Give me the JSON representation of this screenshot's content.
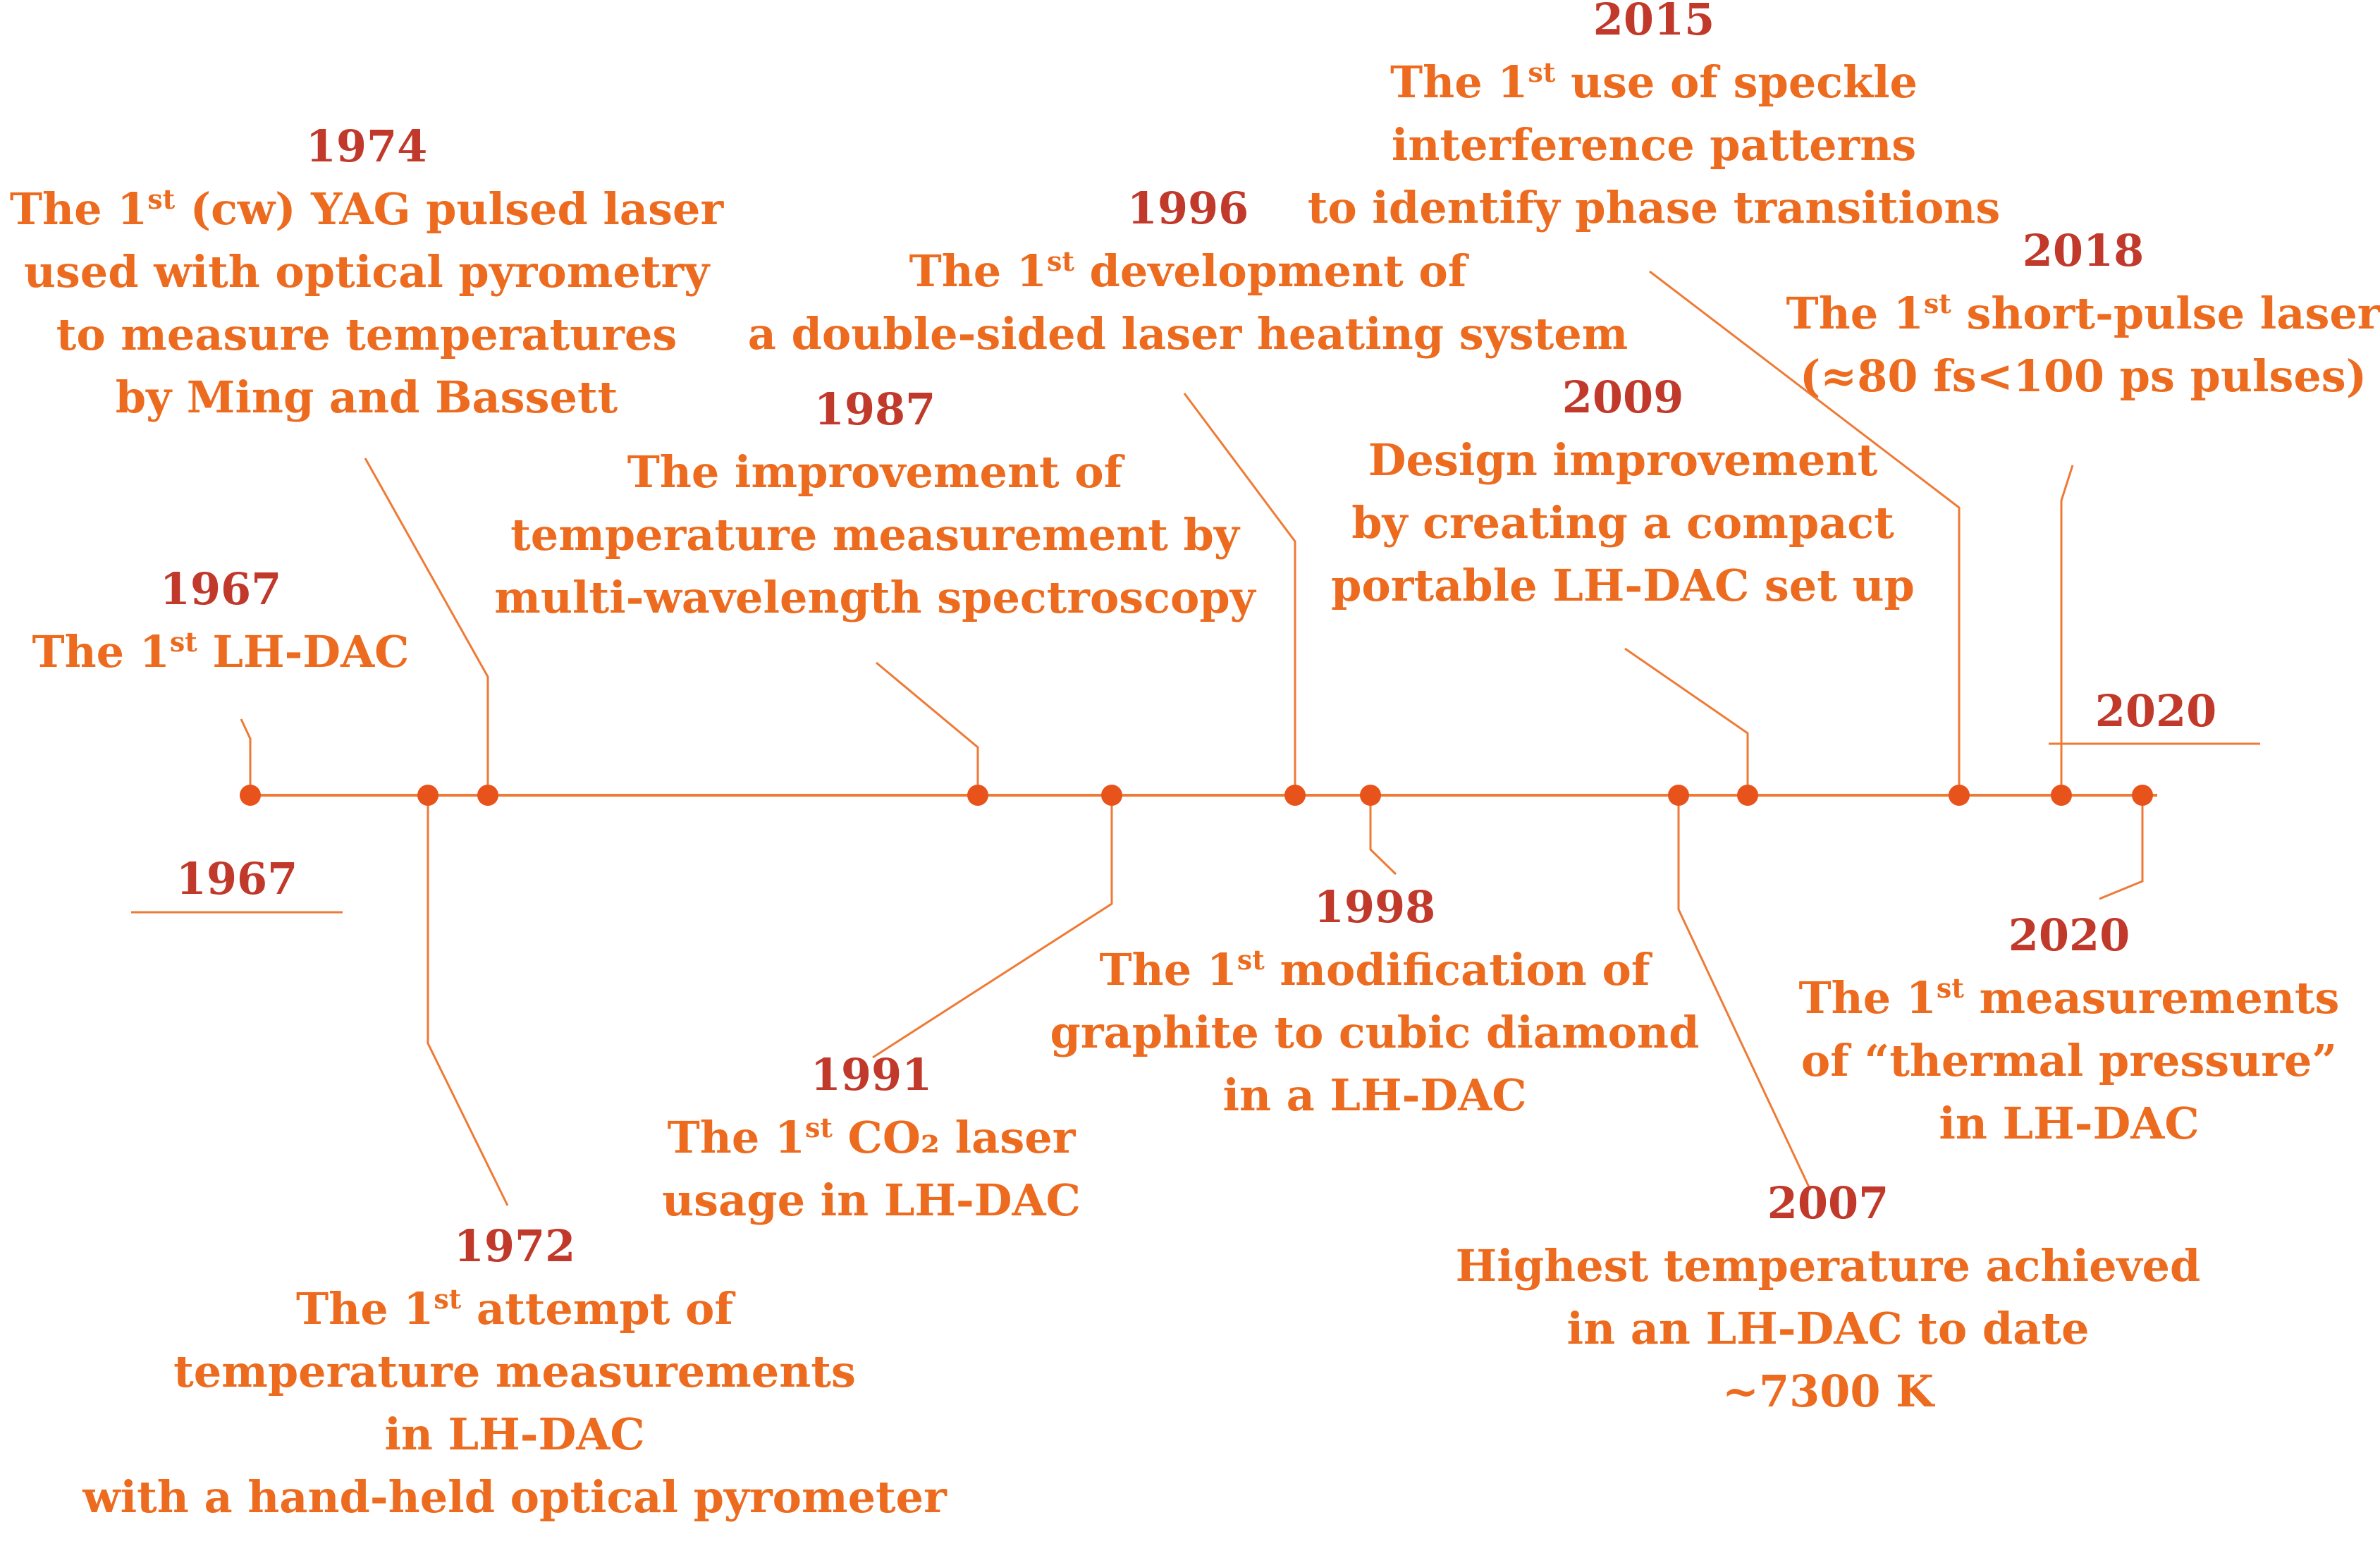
{
  "colors": {
    "year": "#c0392b",
    "text": "#ec6b1f",
    "line": "#ef7a35",
    "marker": "#e8531b"
  },
  "start_label": "1967",
  "end_label": "2020",
  "events": [
    {
      "id": "1967",
      "year": "1967",
      "lines": [
        [
          "The 1",
          "st",
          " LH-DAC"
        ]
      ]
    },
    {
      "id": "1972",
      "year": "1972",
      "lines": [
        [
          "The 1",
          "st",
          " attempt of"
        ],
        [
          "temperature measurements"
        ],
        [
          "in LH-DAC"
        ],
        [
          "with a hand-held optical pyrometer"
        ]
      ]
    },
    {
      "id": "1974",
      "year": "1974",
      "lines": [
        [
          "The 1",
          "st",
          " (cw) YAG pulsed laser"
        ],
        [
          "used with optical pyrometry"
        ],
        [
          "to measure temperatures"
        ],
        [
          "by Ming and Bassett"
        ]
      ]
    },
    {
      "id": "1987",
      "year": "1987",
      "lines": [
        [
          "The improvement of"
        ],
        [
          "temperature measurement by"
        ],
        [
          "multi-wavelength spectroscopy"
        ]
      ]
    },
    {
      "id": "1991",
      "year": "1991",
      "lines": [
        [
          "The 1",
          "st",
          " CO₂ laser"
        ],
        [
          "usage in LH-DAC"
        ]
      ]
    },
    {
      "id": "1996",
      "year": "1996",
      "lines": [
        [
          "The 1",
          "st",
          " development of"
        ],
        [
          "a double-sided laser heating system"
        ]
      ]
    },
    {
      "id": "1998",
      "year": "1998",
      "lines": [
        [
          "The 1",
          "st",
          " modification of"
        ],
        [
          "graphite to cubic diamond"
        ],
        [
          "in a LH-DAC"
        ]
      ]
    },
    {
      "id": "2007",
      "year": "2007",
      "lines": [
        [
          "Highest temperature achieved"
        ],
        [
          "in an LH-DAC to date"
        ],
        [
          "~7300  K"
        ]
      ]
    },
    {
      "id": "2009",
      "year": "2009",
      "lines": [
        [
          "Design improvement"
        ],
        [
          "by creating a compact"
        ],
        [
          "portable LH-DAC set up"
        ]
      ]
    },
    {
      "id": "2015",
      "year": "2015",
      "lines": [
        [
          "The 1",
          "st",
          " use of speckle"
        ],
        [
          "interference patterns"
        ],
        [
          "to identify phase transitions"
        ]
      ]
    },
    {
      "id": "2018",
      "year": "2018",
      "lines": [
        [
          "The 1",
          "st",
          " short-pulse laser"
        ],
        [
          "(≈80 fs<100 ps pulses)"
        ]
      ]
    },
    {
      "id": "2020",
      "year": "2020",
      "lines": [
        [
          "The 1",
          "st",
          " measurements"
        ],
        [
          "of “thermal pressure”"
        ],
        [
          "in LH-DAC"
        ]
      ]
    }
  ]
}
